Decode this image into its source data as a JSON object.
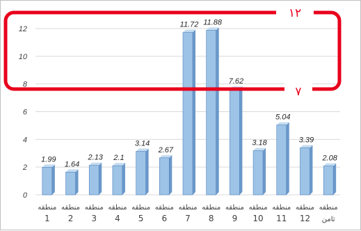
{
  "chart_data": {
    "type": "bar",
    "categories": [
      [
        "منطقه",
        "1"
      ],
      [
        "منطقه",
        "2"
      ],
      [
        "منطقه",
        "3"
      ],
      [
        "منطقه",
        "4"
      ],
      [
        "منطقه",
        "5"
      ],
      [
        "منطقه",
        "6"
      ],
      [
        "منطقه",
        "7"
      ],
      [
        "منطقه",
        "8"
      ],
      [
        "منطقه",
        "9"
      ],
      [
        "منطقه",
        "10"
      ],
      [
        "منطقه",
        "11"
      ],
      [
        "منطقه",
        "12"
      ],
      [
        "منطقه",
        "ثامن"
      ]
    ],
    "values": [
      1.99,
      1.64,
      2.13,
      2.1,
      3.14,
      2.67,
      11.72,
      11.88,
      7.62,
      3.18,
      5.04,
      3.39,
      2.08
    ],
    "data_labels": [
      "1.99",
      "1.64",
      "2.13",
      "2.1",
      "3.14",
      "2.67",
      "11.72",
      "11.88",
      "7.62",
      "3.18",
      "5.04",
      "3.39",
      "2.08"
    ],
    "yticks": [
      "0",
      "2",
      "4",
      "6",
      "8",
      "10",
      "12"
    ],
    "ylim": [
      0,
      13
    ],
    "grid": true,
    "title": "",
    "xlabel": "",
    "ylabel": "",
    "bar_color": "#9dc3e6",
    "bar_edge_color": "#4f81bd"
  },
  "annotations": {
    "box_top_label": "۱۲",
    "box_bottom_label": "۷",
    "color": "#e8001c"
  }
}
